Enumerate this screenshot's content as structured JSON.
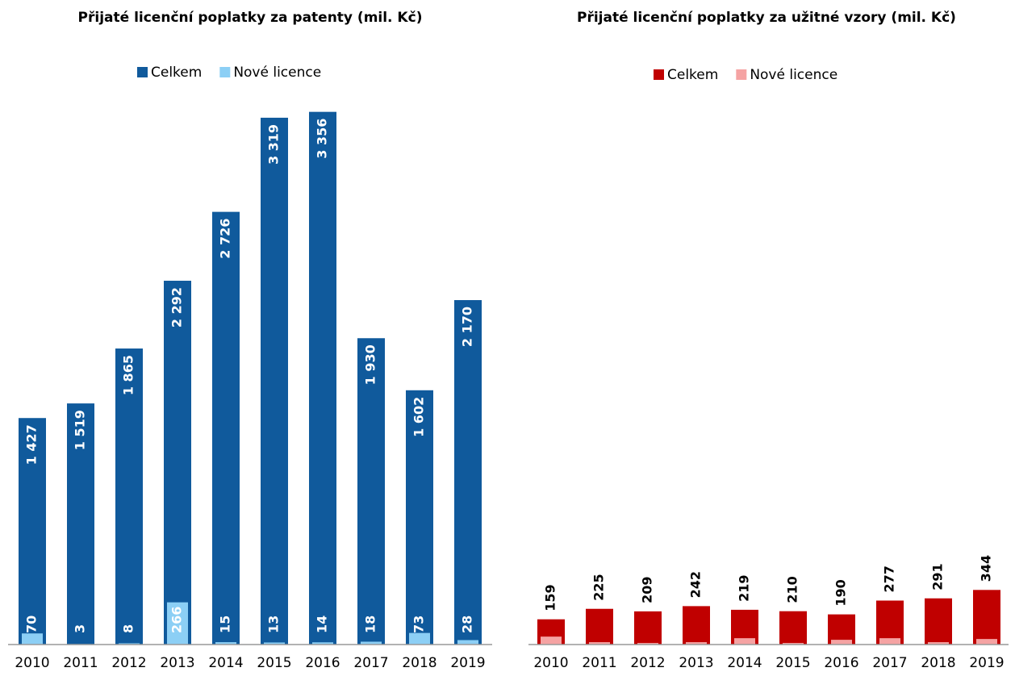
{
  "chart_data": [
    {
      "type": "bar",
      "title": "Přijaté licenční poplatky za patenty (mil. Kč)",
      "categories": [
        "2010",
        "2011",
        "2012",
        "2013",
        "2014",
        "2015",
        "2016",
        "2017",
        "2018",
        "2019"
      ],
      "ylim": [
        0,
        3400
      ],
      "series": [
        {
          "name": "Celkem",
          "color": "#105a9c",
          "values": [
            1427,
            1519,
            1865,
            2292,
            2726,
            3319,
            3356,
            1930,
            1602,
            2170
          ],
          "value_labels": [
            "1 427",
            "1 519",
            "1 865",
            "2 292",
            "2 726",
            "3 319",
            "3 356",
            "1 930",
            "1 602",
            "2 170"
          ]
        },
        {
          "name": "Nové licence",
          "color": "#8ccff5",
          "values": [
            70,
            3,
            8,
            266,
            15,
            13,
            14,
            18,
            73,
            28
          ]
        }
      ]
    },
    {
      "type": "bar",
      "title": "Přijaté licenční poplatky za užitné vzory (mil. Kč)",
      "categories": [
        "2010",
        "2011",
        "2012",
        "2013",
        "2014",
        "2015",
        "2016",
        "2017",
        "2018",
        "2019"
      ],
      "ylim": [
        0,
        3400
      ],
      "series": [
        {
          "name": "Celkem",
          "color": "#c00000",
          "values": [
            159,
            225,
            209,
            242,
            219,
            210,
            190,
            277,
            291,
            344
          ]
        },
        {
          "name": "Nové licence",
          "color": "#f5a3a3",
          "values": [
            50,
            15,
            10,
            15,
            40,
            10,
            30,
            40,
            15,
            35
          ]
        }
      ]
    }
  ]
}
